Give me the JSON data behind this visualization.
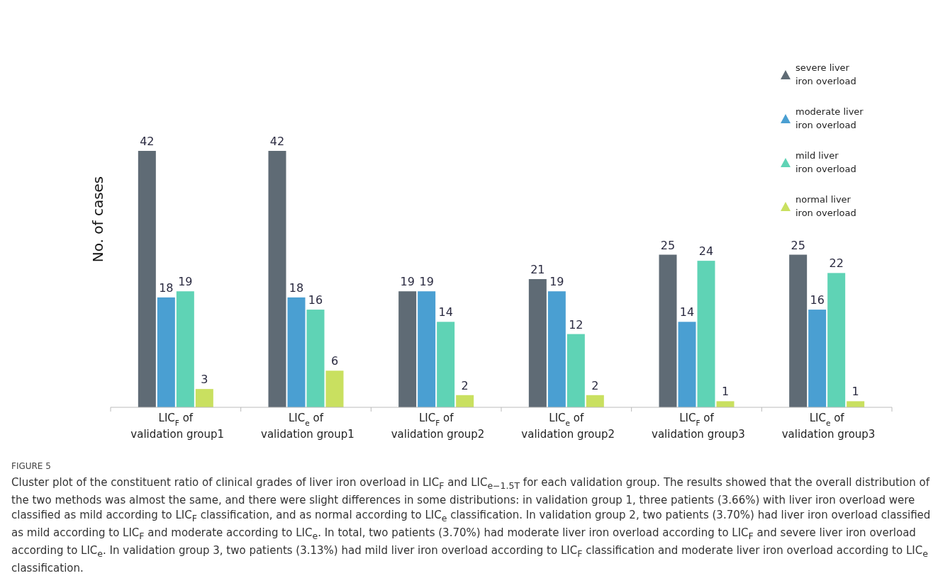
{
  "chart_data": {
    "type": "bar",
    "title": "FIGURE 5",
    "ylabel": "No. of cases",
    "categories": [
      "LIC$_{F}$ of validation group1",
      "LIC$_{e}$ of validation group1",
      "LIC$_{F}$ of validation group2",
      "LIC$_{e}$ of validation group2",
      "LIC$_{F}$ of validation group3",
      "LIC$_{e}$ of validation group3"
    ],
    "series": [
      {
        "name": "severe liver iron overload",
        "color": "#5f6b75",
        "values": [
          42,
          42,
          19,
          21,
          25,
          25
        ]
      },
      {
        "name": "moderate liver iron overload",
        "color": "#4a9fd2",
        "values": [
          18,
          18,
          19,
          19,
          14,
          16
        ]
      },
      {
        "name": "mild liver iron overload",
        "color": "#5fd3b5",
        "values": [
          19,
          16,
          14,
          12,
          24,
          22
        ]
      },
      {
        "name": "normal liver iron overload",
        "color": "#c9e060",
        "values": [
          3,
          6,
          2,
          2,
          1,
          1
        ]
      }
    ],
    "tick_labels": "x",
    "data_labels": true,
    "legend": "top right",
    "annotations": [
      "Cluster plot of the constituent ratio of clinical grades of liver iron overload in LIC$_{F}$ and LIC$_{e−1.5T}$ for each validation group. The results showed that the overall distribution of the two methods was almost the same, and there were slight differences in some distributions: in validation group 1, three patients (3.66%) with liver iron overload were classified as mild according to LIC$_{F}$ classification, and as normal according to LIC$_{e}$ classification. In validation group 2, two patients (3.70%) had liver iron overload classified as mild according to LIC$_{F}$ and moderate according to LIC$_{e}$. In total, two patients (3.70%) had moderate liver iron overload according to LIC$_{F}$ and severe liver iron overload according to LIC$_{e}$. In validation group 3, two patients (3.13%) had mild liver iron overload according to LIC$_{F}$ classification and moderate liver iron overload according to LIC$_{e}$ classification."
    ]
  }
}
